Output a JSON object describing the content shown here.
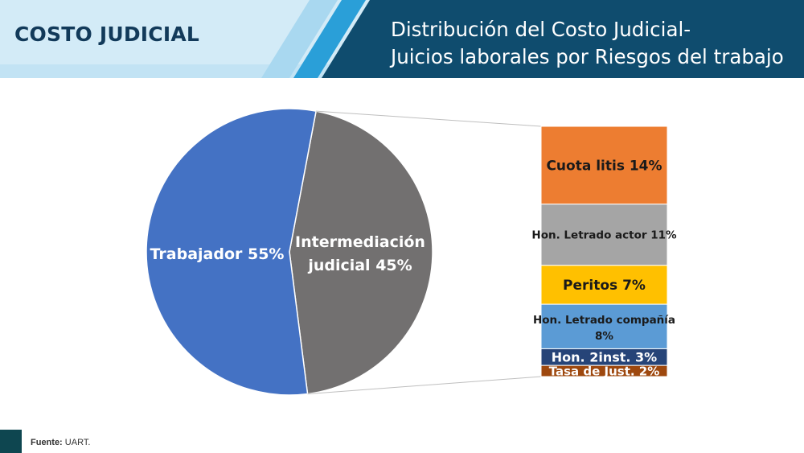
{
  "header": {
    "section_label": "COSTO JUDICIAL",
    "title_line1": "Distribución del Costo Judicial-",
    "title_line2": "Juicios laborales por Riesgos del trabajo"
  },
  "footer": {
    "source_label": "Fuente:",
    "source_value": "UART."
  },
  "colors": {
    "header_light": "#d3ebf7",
    "header_dark": "#0f4c6e",
    "header_stripe": "#2a9fd8",
    "section_label": "#123a5a",
    "footer_square": "#0e4650"
  },
  "chart_data": {
    "type": "pie",
    "pie": {
      "slices": [
        {
          "label": "Trabajador 55%",
          "value": 55,
          "color": "#4472c4"
        },
        {
          "label": "Intermediación judicial 45%",
          "value": 45,
          "color": "#727070"
        }
      ]
    },
    "breakdown": {
      "type": "stacked-bar",
      "source_slice": "Intermediación judicial 45%",
      "segments": [
        {
          "label": "Cuota litis 14%",
          "value": 14,
          "color": "#ed7d31"
        },
        {
          "label": "Hon. Letrado actor 11%",
          "value": 11,
          "color": "#a5a5a5"
        },
        {
          "label": "Peritos 7%",
          "value": 7,
          "color": "#ffc000"
        },
        {
          "label": "Hon. Letrado compañía 8%",
          "value": 8,
          "color": "#5b9bd5"
        },
        {
          "label": "Hon. 2inst. 3%",
          "value": 3,
          "color": "#264478"
        },
        {
          "label": "Tasa de Just. 2%",
          "value": 2,
          "color": "#9e480e"
        }
      ]
    }
  }
}
